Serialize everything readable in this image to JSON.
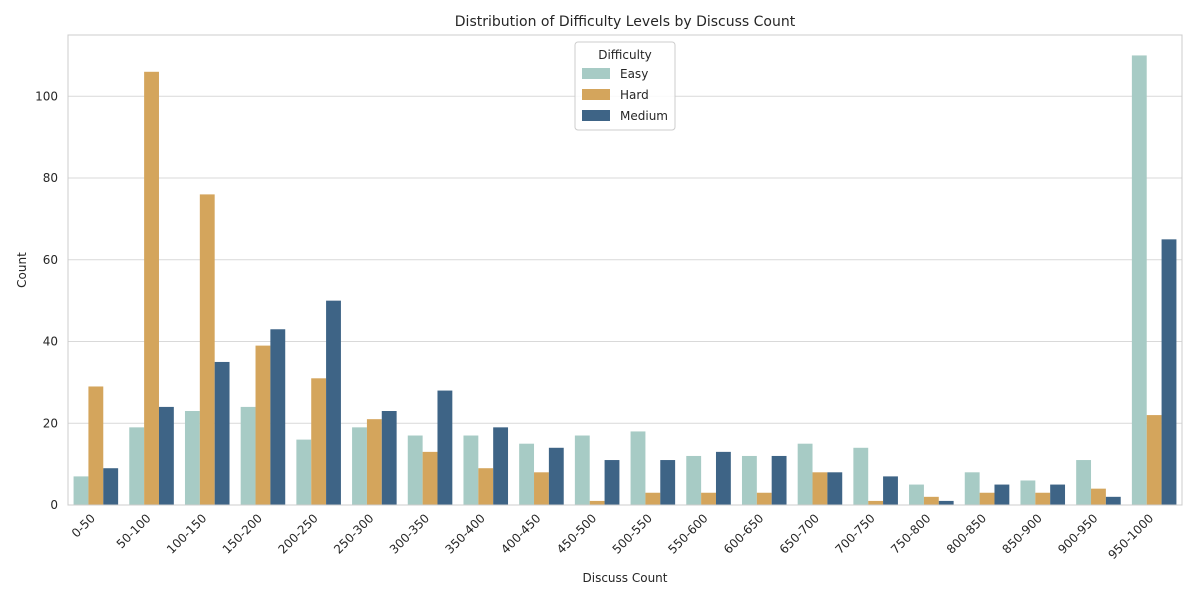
{
  "chart_data": {
    "type": "bar",
    "title": "Distribution of Difficulty Levels by Discuss Count",
    "xlabel": "Discuss Count",
    "ylabel": "Count",
    "ylim": [
      0,
      115
    ],
    "yticks": [
      0,
      20,
      40,
      60,
      80,
      100
    ],
    "grid": "y",
    "legend": {
      "title": "Difficulty",
      "placement": "top-center"
    },
    "categories": [
      "0-50",
      "50-100",
      "100-150",
      "150-200",
      "200-250",
      "250-300",
      "300-350",
      "350-400",
      "400-450",
      "450-500",
      "500-550",
      "550-600",
      "600-650",
      "650-700",
      "700-750",
      "750-800",
      "800-850",
      "850-900",
      "900-950",
      "950-1000"
    ],
    "series": [
      {
        "name": "Easy",
        "color": "#a7cbc5",
        "values": [
          7,
          19,
          23,
          24,
          16,
          19,
          17,
          17,
          15,
          17,
          18,
          12,
          12,
          15,
          14,
          5,
          8,
          6,
          11,
          110
        ]
      },
      {
        "name": "Hard",
        "color": "#d4a55c",
        "values": [
          29,
          106,
          76,
          39,
          31,
          21,
          13,
          9,
          8,
          1,
          3,
          3,
          3,
          8,
          1,
          2,
          3,
          3,
          4,
          22
        ]
      },
      {
        "name": "Medium",
        "color": "#3e6486",
        "values": [
          9,
          24,
          35,
          43,
          50,
          23,
          28,
          19,
          14,
          11,
          11,
          13,
          12,
          8,
          7,
          1,
          5,
          5,
          2,
          65
        ]
      }
    ]
  }
}
